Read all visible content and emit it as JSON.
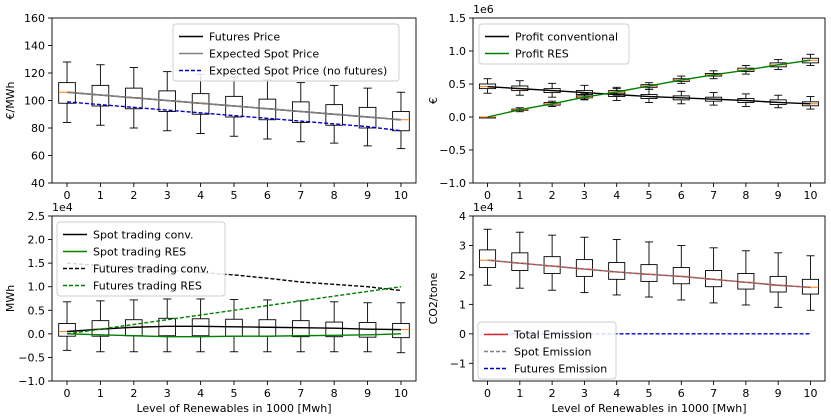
{
  "figure": {
    "xlabel": "Level of Renewables in 1000 [Mwh]"
  },
  "chart_data": [
    {
      "id": "price",
      "type": "box+line",
      "title": "",
      "xlabel": "",
      "ylabel": "€/MWh",
      "xlim": [
        -0.45,
        10.45
      ],
      "ylim": [
        40,
        160
      ],
      "yticks": [
        40,
        60,
        80,
        100,
        120,
        140,
        160
      ],
      "yticklabels": [
        "40",
        "60",
        "80",
        "100",
        "120",
        "140",
        "160"
      ],
      "xticks": [
        0,
        1,
        2,
        3,
        4,
        5,
        6,
        7,
        8,
        9,
        10
      ],
      "xticklabels": [
        "0",
        "1",
        "2",
        "3",
        "4",
        "5",
        "6",
        "7",
        "8",
        "9",
        "10"
      ],
      "offset_text": "",
      "legend_position": "top-right",
      "boxes": {
        "x": [
          0,
          1,
          2,
          3,
          4,
          5,
          6,
          7,
          8,
          9,
          10
        ],
        "whisker_low": [
          84,
          82,
          80,
          78,
          76,
          74,
          72,
          70,
          69,
          67,
          65
        ],
        "q1": [
          98,
          96,
          94,
          92,
          90,
          88,
          86,
          84,
          82,
          80,
          78
        ],
        "median": [
          106,
          104,
          102,
          100,
          98,
          96,
          94,
          92,
          90,
          88,
          86
        ],
        "q3": [
          113,
          111,
          109,
          107,
          105,
          103,
          101,
          99,
          97,
          95,
          92
        ],
        "whisker_high": [
          128,
          126,
          124,
          121,
          119,
          117,
          115,
          113,
          111,
          109,
          106
        ]
      },
      "series": [
        {
          "name": "Futures Price",
          "color": "#000000",
          "style": "solid",
          "x": [
            0,
            1,
            2,
            3,
            4,
            5,
            6,
            7,
            8,
            9,
            10
          ],
          "values": [
            106,
            104,
            102,
            100,
            98,
            96,
            94,
            92,
            90,
            88,
            86
          ]
        },
        {
          "name": "Expected Spot Price",
          "color": "#808080",
          "style": "solid",
          "x": [
            0,
            1,
            2,
            3,
            4,
            5,
            6,
            7,
            8,
            9,
            10
          ],
          "values": [
            106,
            104,
            102,
            100,
            98,
            96,
            94,
            92,
            90,
            88,
            86
          ]
        },
        {
          "name": "Expected Spot Price (no futures)",
          "color": "#0000cc",
          "style": "dashed",
          "x": [
            0,
            1,
            2,
            3,
            4,
            5,
            6,
            7,
            8,
            9,
            10
          ],
          "values": [
            99,
            97,
            95,
            93,
            91,
            89,
            87,
            85,
            83,
            81,
            78
          ]
        }
      ]
    },
    {
      "id": "profit",
      "type": "box+line",
      "title": "",
      "xlabel": "",
      "ylabel": "€",
      "xlim": [
        -0.45,
        10.45
      ],
      "ylim": [
        -1.0,
        1.5
      ],
      "yticks": [
        -1.0,
        -0.5,
        0.0,
        0.5,
        1.0,
        1.5
      ],
      "yticklabels": [
        "−1.0",
        "−0.5",
        "0.0",
        "0.5",
        "1.0",
        "1.5"
      ],
      "xticks": [
        0,
        1,
        2,
        3,
        4,
        5,
        6,
        7,
        8,
        9,
        10
      ],
      "xticklabels": [
        "0",
        "1",
        "2",
        "3",
        "4",
        "5",
        "6",
        "7",
        "8",
        "9",
        "10"
      ],
      "offset_text": "1e6",
      "legend_position": "top-left",
      "boxes": {
        "x": [
          0,
          1,
          2,
          3,
          4,
          5,
          6,
          7,
          8,
          9,
          10
        ],
        "whisker_low": [
          0.36,
          0.33,
          0.3,
          0.27,
          0.25,
          0.22,
          0.2,
          0.18,
          0.16,
          0.14,
          0.12
        ],
        "q1": [
          0.43,
          0.4,
          0.37,
          0.34,
          0.31,
          0.28,
          0.26,
          0.24,
          0.22,
          0.19,
          0.17
        ],
        "median": [
          0.46,
          0.43,
          0.4,
          0.37,
          0.34,
          0.31,
          0.29,
          0.27,
          0.25,
          0.22,
          0.2
        ],
        "q3": [
          0.5,
          0.47,
          0.43,
          0.4,
          0.37,
          0.34,
          0.32,
          0.3,
          0.28,
          0.26,
          0.23
        ],
        "whisker_high": [
          0.58,
          0.55,
          0.51,
          0.48,
          0.45,
          0.42,
          0.39,
          0.37,
          0.35,
          0.33,
          0.31
        ]
      },
      "boxes2": {
        "x": [
          0,
          1,
          2,
          3,
          4,
          5,
          6,
          7,
          8,
          9,
          10
        ],
        "whisker_low": [
          0.0,
          0.08,
          0.16,
          0.26,
          0.33,
          0.42,
          0.51,
          0.58,
          0.65,
          0.72,
          0.78
        ],
        "q1": [
          0.0,
          0.1,
          0.18,
          0.29,
          0.36,
          0.45,
          0.54,
          0.62,
          0.69,
          0.76,
          0.82
        ],
        "median": [
          0.0,
          0.11,
          0.2,
          0.3,
          0.38,
          0.47,
          0.56,
          0.64,
          0.71,
          0.79,
          0.86
        ],
        "q3": [
          0.0,
          0.12,
          0.22,
          0.32,
          0.4,
          0.49,
          0.58,
          0.66,
          0.74,
          0.82,
          0.89
        ],
        "whisker_high": [
          0.0,
          0.14,
          0.24,
          0.35,
          0.43,
          0.52,
          0.62,
          0.7,
          0.78,
          0.87,
          0.95
        ]
      },
      "series": [
        {
          "name": "Profit conventional",
          "color": "#000000",
          "style": "solid",
          "x": [
            0,
            1,
            2,
            3,
            4,
            5,
            6,
            7,
            8,
            9,
            10
          ],
          "values": [
            0.46,
            0.43,
            0.4,
            0.37,
            0.34,
            0.31,
            0.29,
            0.27,
            0.25,
            0.22,
            0.2
          ]
        },
        {
          "name": "Profit RES",
          "color": "#008000",
          "style": "solid",
          "x": [
            0,
            1,
            2,
            3,
            4,
            5,
            6,
            7,
            8,
            9,
            10
          ],
          "values": [
            0.0,
            0.11,
            0.2,
            0.3,
            0.38,
            0.47,
            0.56,
            0.64,
            0.71,
            0.79,
            0.86
          ]
        }
      ]
    },
    {
      "id": "trading",
      "type": "box+line",
      "title": "",
      "xlabel": "Level of Renewables in 1000 [Mwh]",
      "ylabel": "MWh",
      "xlim": [
        -0.45,
        10.45
      ],
      "ylim": [
        -1.0,
        2.5
      ],
      "yticks": [
        -1.0,
        -0.5,
        0.0,
        0.5,
        1.0,
        1.5,
        2.0,
        2.5
      ],
      "yticklabels": [
        "−1.0",
        "−0.5",
        "0.0",
        "0.5",
        "1.0",
        "1.5",
        "2.0",
        "2.5"
      ],
      "xticks": [
        0,
        1,
        2,
        3,
        4,
        5,
        6,
        7,
        8,
        9,
        10
      ],
      "xticklabels": [
        "0",
        "1",
        "2",
        "3",
        "4",
        "5",
        "6",
        "7",
        "8",
        "9",
        "10"
      ],
      "offset_text": "1e4",
      "legend_position": "top-left",
      "boxes": {
        "x": [
          0,
          1,
          2,
          3,
          4,
          5,
          6,
          7,
          8,
          9,
          10
        ],
        "whisker_low": [
          -0.35,
          -0.38,
          -0.38,
          -0.38,
          -0.38,
          -0.38,
          -0.38,
          -0.38,
          -0.38,
          -0.38,
          -0.4
        ],
        "q1": [
          -0.05,
          -0.05,
          -0.04,
          -0.04,
          -0.04,
          -0.05,
          -0.05,
          -0.06,
          -0.06,
          -0.07,
          -0.08
        ],
        "median": [
          0.05,
          0.1,
          0.14,
          0.16,
          0.16,
          0.15,
          0.14,
          0.13,
          0.12,
          0.1,
          0.09
        ],
        "q3": [
          0.22,
          0.28,
          0.3,
          0.33,
          0.32,
          0.31,
          0.3,
          0.28,
          0.25,
          0.24,
          0.22
        ],
        "whisker_high": [
          0.68,
          0.7,
          0.72,
          0.74,
          0.74,
          0.73,
          0.72,
          0.7,
          0.68,
          0.66,
          0.66
        ]
      },
      "series": [
        {
          "name": "Spot trading conv.",
          "color": "#000000",
          "style": "solid",
          "x": [
            0,
            1,
            2,
            3,
            4,
            5,
            6,
            7,
            8,
            9,
            10
          ],
          "values": [
            0.05,
            0.1,
            0.14,
            0.16,
            0.16,
            0.15,
            0.14,
            0.13,
            0.12,
            0.1,
            0.09
          ]
        },
        {
          "name": "Spot trading RES",
          "color": "#008000",
          "style": "solid",
          "x": [
            0,
            1,
            2,
            3,
            4,
            5,
            6,
            7,
            8,
            9,
            10
          ],
          "values": [
            0.0,
            -0.02,
            -0.04,
            -0.06,
            -0.06,
            -0.05,
            -0.05,
            -0.04,
            -0.03,
            -0.02,
            0.0
          ]
        },
        {
          "name": "Futures trading conv.",
          "color": "#000000",
          "style": "dashed",
          "x": [
            0,
            1,
            2,
            3,
            4,
            5,
            6,
            7,
            8,
            9,
            10
          ],
          "values": [
            1.5,
            1.45,
            1.4,
            1.35,
            1.3,
            1.25,
            1.18,
            1.1,
            1.05,
            1.0,
            0.92
          ]
        },
        {
          "name": "Futures trading RES",
          "color": "#008000",
          "style": "dashed",
          "x": [
            0,
            1,
            2,
            3,
            4,
            5,
            6,
            7,
            8,
            9,
            10
          ],
          "values": [
            0.0,
            0.1,
            0.2,
            0.3,
            0.4,
            0.5,
            0.6,
            0.7,
            0.8,
            0.9,
            1.0
          ]
        }
      ]
    },
    {
      "id": "emission",
      "type": "box+line",
      "title": "",
      "xlabel": "Level of Renewables in 1000 [Mwh]",
      "ylabel": "CO2/tone",
      "xlim": [
        -0.45,
        10.45
      ],
      "ylim": [
        -1.6,
        4
      ],
      "yticks": [
        -1,
        0,
        1,
        2,
        3,
        4
      ],
      "yticklabels": [
        "−1",
        "0",
        "1",
        "2",
        "3",
        "4"
      ],
      "xticks": [
        0,
        1,
        2,
        3,
        4,
        5,
        6,
        7,
        8,
        9,
        10
      ],
      "xticklabels": [
        "0",
        "1",
        "2",
        "3",
        "4",
        "5",
        "6",
        "7",
        "8",
        "9",
        "10"
      ],
      "offset_text": "1e4",
      "legend_position": "lower-left",
      "boxes": {
        "x": [
          0,
          1,
          2,
          3,
          4,
          5,
          6,
          7,
          8,
          9,
          10
        ],
        "whisker_low": [
          1.65,
          1.55,
          1.48,
          1.4,
          1.32,
          1.25,
          1.15,
          1.05,
          0.98,
          0.9,
          0.8
        ],
        "q1": [
          2.25,
          2.15,
          2.05,
          1.95,
          1.85,
          1.78,
          1.7,
          1.6,
          1.52,
          1.42,
          1.35
        ],
        "median": [
          2.5,
          2.4,
          2.3,
          2.2,
          2.1,
          2.02,
          1.95,
          1.85,
          1.75,
          1.65,
          1.58
        ],
        "q3": [
          2.85,
          2.75,
          2.62,
          2.52,
          2.42,
          2.35,
          2.25,
          2.15,
          2.05,
          1.95,
          1.85
        ],
        "whisker_high": [
          3.55,
          3.45,
          3.35,
          3.28,
          3.2,
          3.12,
          3.0,
          2.92,
          2.82,
          2.75,
          2.65
        ]
      },
      "series": [
        {
          "name": "Total Emission",
          "color": "#d62728",
          "style": "solid",
          "x": [
            0,
            1,
            2,
            3,
            4,
            5,
            6,
            7,
            8,
            9,
            10
          ],
          "values": [
            2.5,
            2.4,
            2.3,
            2.2,
            2.1,
            2.02,
            1.95,
            1.85,
            1.75,
            1.65,
            1.58
          ]
        },
        {
          "name": "Spot Emission",
          "color": "#808080",
          "style": "dashed",
          "x": [
            0,
            1,
            2,
            3,
            4,
            5,
            6,
            7,
            8,
            9,
            10
          ],
          "values": [
            2.5,
            2.4,
            2.3,
            2.2,
            2.1,
            2.02,
            1.95,
            1.85,
            1.75,
            1.65,
            1.58
          ]
        },
        {
          "name": "Futures Emission",
          "color": "#0000cc",
          "style": "dashed",
          "x": [
            0,
            1,
            2,
            3,
            4,
            5,
            6,
            7,
            8,
            9,
            10
          ],
          "values": [
            0,
            0,
            0,
            0,
            0,
            0,
            0,
            0,
            0,
            0,
            0
          ]
        }
      ]
    }
  ]
}
